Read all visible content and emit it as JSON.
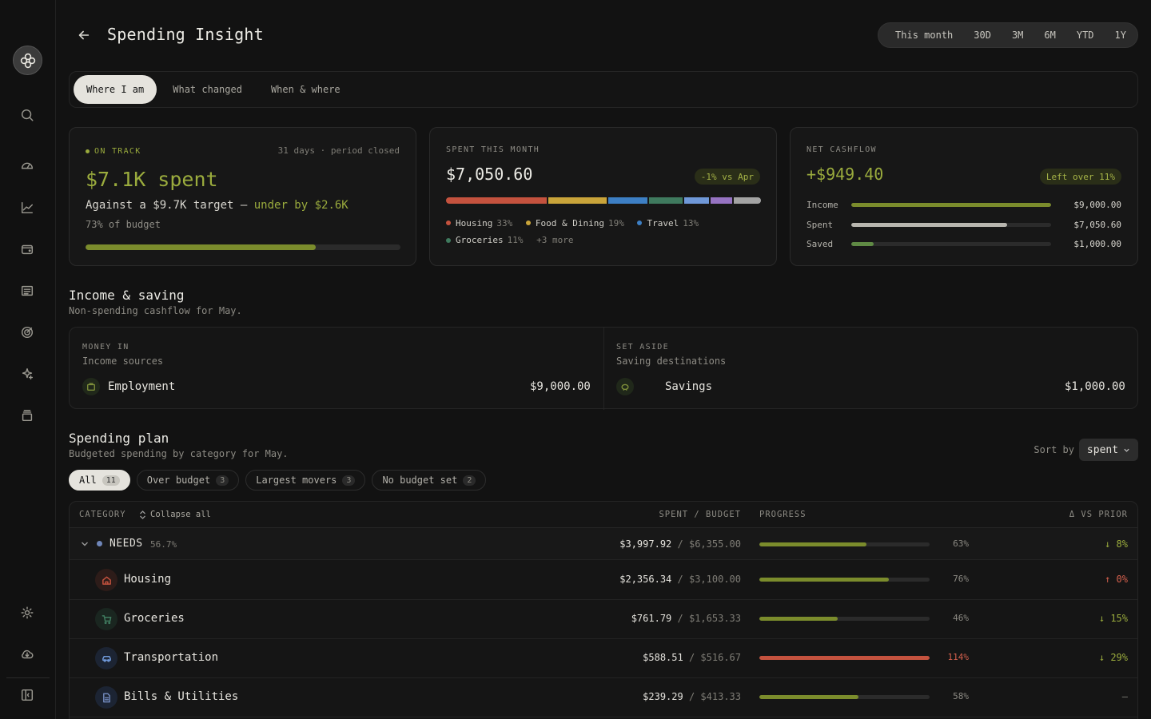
{
  "colors": {
    "accent": "#9aab3d",
    "danger": "#d4604d",
    "bar_ok": "#7b8c2c",
    "bar_over": "#c4523e"
  },
  "header": {
    "title": "Spending Insight",
    "ranges": [
      "This month",
      "30D",
      "3M",
      "6M",
      "YTD",
      "1Y"
    ]
  },
  "tabs": [
    "Where I am",
    "What changed",
    "When & where"
  ],
  "status_card": {
    "status": "ON TRACK",
    "period": "31 days · period closed",
    "headline": "$7.1K spent",
    "against_prefix": "Against a $9.7K target —",
    "against_highlight": "under by $2.6K",
    "budget_pct_text": "73% of budget",
    "budget_fraction": 0.73
  },
  "spent_card": {
    "eyebrow": "SPENT THIS MONTH",
    "amount": "$7,050.60",
    "badge": "-1% vs Apr",
    "segments": [
      {
        "name": "Housing",
        "pct": 33,
        "color": "#c4523e"
      },
      {
        "name": "Food & Dining",
        "pct": 19,
        "color": "#c9a43a"
      },
      {
        "name": "Travel",
        "pct": 13,
        "color": "#3d7fc4"
      },
      {
        "name": "Groceries",
        "pct": 11,
        "color": "#3f7a5e"
      },
      {
        "name": "",
        "pct": 8,
        "color": "#6f98d8"
      },
      {
        "name": "",
        "pct": 7,
        "color": "#9673c2"
      },
      {
        "name": "",
        "pct": 9,
        "color": "#a3a3a3"
      }
    ],
    "legend": [
      {
        "label": "Housing",
        "pct": "33%",
        "color": "#c4523e"
      },
      {
        "label": "Food & Dining",
        "pct": "19%",
        "color": "#c9a43a"
      },
      {
        "label": "Travel",
        "pct": "13%",
        "color": "#3d7fc4"
      },
      {
        "label": "Groceries",
        "pct": "11%",
        "color": "#3f7a5e"
      }
    ],
    "more": "+3 more"
  },
  "cashflow_card": {
    "eyebrow": "NET CASHFLOW",
    "amount": "+$949.40",
    "badge": "Left over 11%",
    "rows": [
      {
        "label": "Income",
        "value": "$9,000.00",
        "fraction": 1.0,
        "color": "#7b8c2c"
      },
      {
        "label": "Spent",
        "value": "$7,050.60",
        "fraction": 0.78,
        "color": "#b8b6af"
      },
      {
        "label": "Saved",
        "value": "$1,000.00",
        "fraction": 0.11,
        "color": "#5f8a44"
      }
    ]
  },
  "income_section": {
    "title": "Income & saving",
    "subtitle": "Non-spending cashflow for May.",
    "money_in": {
      "eyebrow": "MONEY IN",
      "sub": "Income sources",
      "name": "Employment",
      "amount": "$9,000.00"
    },
    "set_aside": {
      "eyebrow": "SET ASIDE",
      "sub": "Saving destinations",
      "name": "Savings",
      "amount": "$1,000.00"
    }
  },
  "plan_section": {
    "title": "Spending plan",
    "subtitle": "Budgeted spending by category for May.",
    "sort_label": "Sort by",
    "sort_value": "spent",
    "chips": [
      {
        "label": "All",
        "count": "11"
      },
      {
        "label": "Over budget",
        "count": "3"
      },
      {
        "label": "Largest movers",
        "count": "3"
      },
      {
        "label": "No budget set",
        "count": "2"
      }
    ]
  },
  "table": {
    "headers": {
      "category": "CATEGORY",
      "collapse": "Collapse all",
      "spent_budget": "SPENT / BUDGET",
      "progress": "PROGRESS",
      "delta": "Δ VS PRIOR"
    },
    "group": {
      "name": "NEEDS",
      "share": "56.7%",
      "spent": "$3,997.92",
      "budget": "$6,355.00",
      "pct": "63%",
      "progress": 0.63,
      "delta": "↓ 8%"
    },
    "rows": [
      {
        "name": "Housing",
        "icon": "home-icon",
        "spent": "$2,356.34",
        "budget": "$3,100.00",
        "pct": "76%",
        "progress": 0.76,
        "delta": "↑ 0%",
        "over": false,
        "delta_dir": "up"
      },
      {
        "name": "Groceries",
        "icon": "cart-icon",
        "spent": "$761.79",
        "budget": "$1,653.33",
        "pct": "46%",
        "progress": 0.46,
        "delta": "↓ 15%",
        "over": false,
        "delta_dir": "down"
      },
      {
        "name": "Transportation",
        "icon": "car-icon",
        "spent": "$588.51",
        "budget": "$516.67",
        "pct": "114%",
        "progress": 1.0,
        "delta": "↓ 29%",
        "over": true,
        "delta_dir": "down"
      },
      {
        "name": "Bills & Utilities",
        "icon": "document-icon",
        "spent": "$239.29",
        "budget": "$413.33",
        "pct": "58%",
        "progress": 0.58,
        "delta": "—",
        "over": false,
        "delta_dir": "none"
      }
    ]
  }
}
